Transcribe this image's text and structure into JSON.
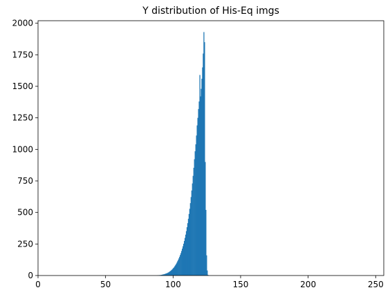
{
  "chart_data": {
    "type": "histogram",
    "title": "Y distribution of His-Eq imgs",
    "xlabel": "",
    "ylabel": "",
    "xlim": [
      0,
      256
    ],
    "ylim": [
      0,
      2020
    ],
    "grid": false,
    "legend": "none",
    "x_ticks": [
      "0",
      "50",
      "100",
      "150",
      "200",
      "250"
    ],
    "x_tick_values": [
      0,
      50,
      100,
      150,
      200,
      250
    ],
    "y_ticks": [
      "0",
      "250",
      "500",
      "750",
      "1000",
      "1250",
      "1500",
      "1750",
      "2000"
    ],
    "y_tick_values": [
      0,
      250,
      500,
      750,
      1000,
      1250,
      1500,
      1750,
      2000
    ],
    "bar_color": "#1f77b4",
    "bin_width": 0.5,
    "bins_start": [
      88.0,
      88.5,
      89.0,
      89.5,
      90.0,
      90.5,
      91.0,
      91.5,
      92.0,
      92.5,
      93.0,
      93.5,
      94.0,
      94.5,
      95.0,
      95.5,
      96.0,
      96.5,
      97.0,
      97.5,
      98.0,
      98.5,
      99.0,
      99.5,
      100.0,
      100.5,
      101.0,
      101.5,
      102.0,
      102.5,
      103.0,
      103.5,
      104.0,
      104.5,
      105.0,
      105.5,
      106.0,
      106.5,
      107.0,
      107.5,
      108.0,
      108.5,
      109.0,
      109.5,
      110.0,
      110.5,
      111.0,
      111.5,
      112.0,
      112.5,
      113.0,
      113.5,
      114.0,
      114.5,
      115.0,
      115.5,
      116.0,
      116.5,
      117.0,
      117.5,
      118.0,
      118.5,
      119.0,
      119.5,
      120.0,
      120.5,
      121.0,
      121.5,
      122.0,
      122.5,
      123.0,
      123.5,
      124.0,
      124.5,
      125.0,
      125.5
    ],
    "counts": [
      1,
      1,
      2,
      3,
      3,
      4,
      5,
      6,
      8,
      9,
      10,
      12,
      14,
      16,
      18,
      20,
      23,
      26,
      30,
      34,
      38,
      43,
      48,
      54,
      60,
      67,
      75,
      83,
      92,
      102,
      113,
      124,
      136,
      149,
      163,
      178,
      195,
      213,
      232,
      252,
      274,
      298,
      324,
      352,
      383,
      415,
      450,
      488,
      529,
      574,
      622,
      674,
      730,
      790,
      854,
      922,
      985,
      1040,
      1110,
      1190,
      1250,
      1320,
      1380,
      1590,
      1420,
      1480,
      1560,
      1650,
      1760,
      1930,
      1850,
      900,
      520,
      160,
      40,
      5
    ]
  }
}
